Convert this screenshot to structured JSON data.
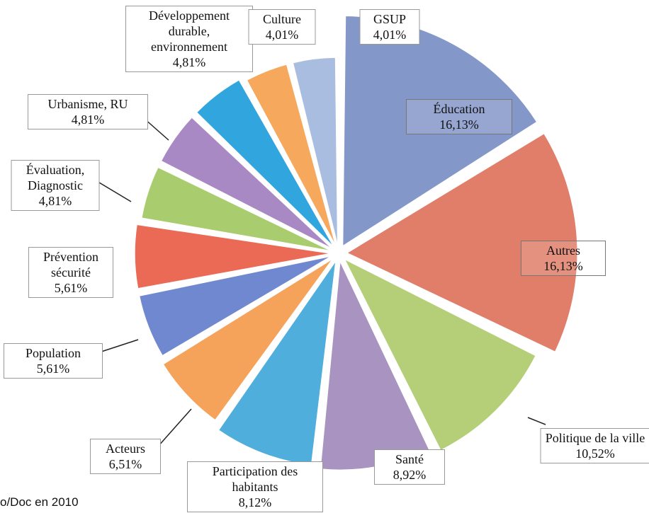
{
  "chart_data": {
    "type": "pie",
    "categories": [
      "Éducation",
      "Autres",
      "Politique de la ville",
      "Santé",
      "Participation des habitants",
      "Acteurs",
      "Population",
      "Prévention sécurité",
      "Évaluation, Diagnostic",
      "Urbanisme, RU",
      "Développement durable, environnement",
      "Culture",
      "GSUP"
    ],
    "values": [
      16.13,
      16.13,
      10.52,
      8.92,
      8.12,
      6.51,
      5.61,
      5.61,
      4.81,
      4.81,
      4.81,
      4.01,
      4.01
    ],
    "value_labels": [
      "16,13%",
      "16,13%",
      "10,52%",
      "8,92%",
      "8,12%",
      "6,51%",
      "5,61%",
      "5,61%",
      "4,81%",
      "4,81%",
      "4,81%",
      "4,01%",
      "4,01%"
    ],
    "colors": [
      "#8497c9",
      "#e07e6a",
      "#b5cf79",
      "#a993c0",
      "#4faedb",
      "#f5a35a",
      "#6f88cf",
      "#ea6a55",
      "#a9cd6e",
      "#a989c4",
      "#31a6de",
      "#f6a85d",
      "#a9bde0"
    ],
    "footnote": "o/Doc en 2010"
  }
}
